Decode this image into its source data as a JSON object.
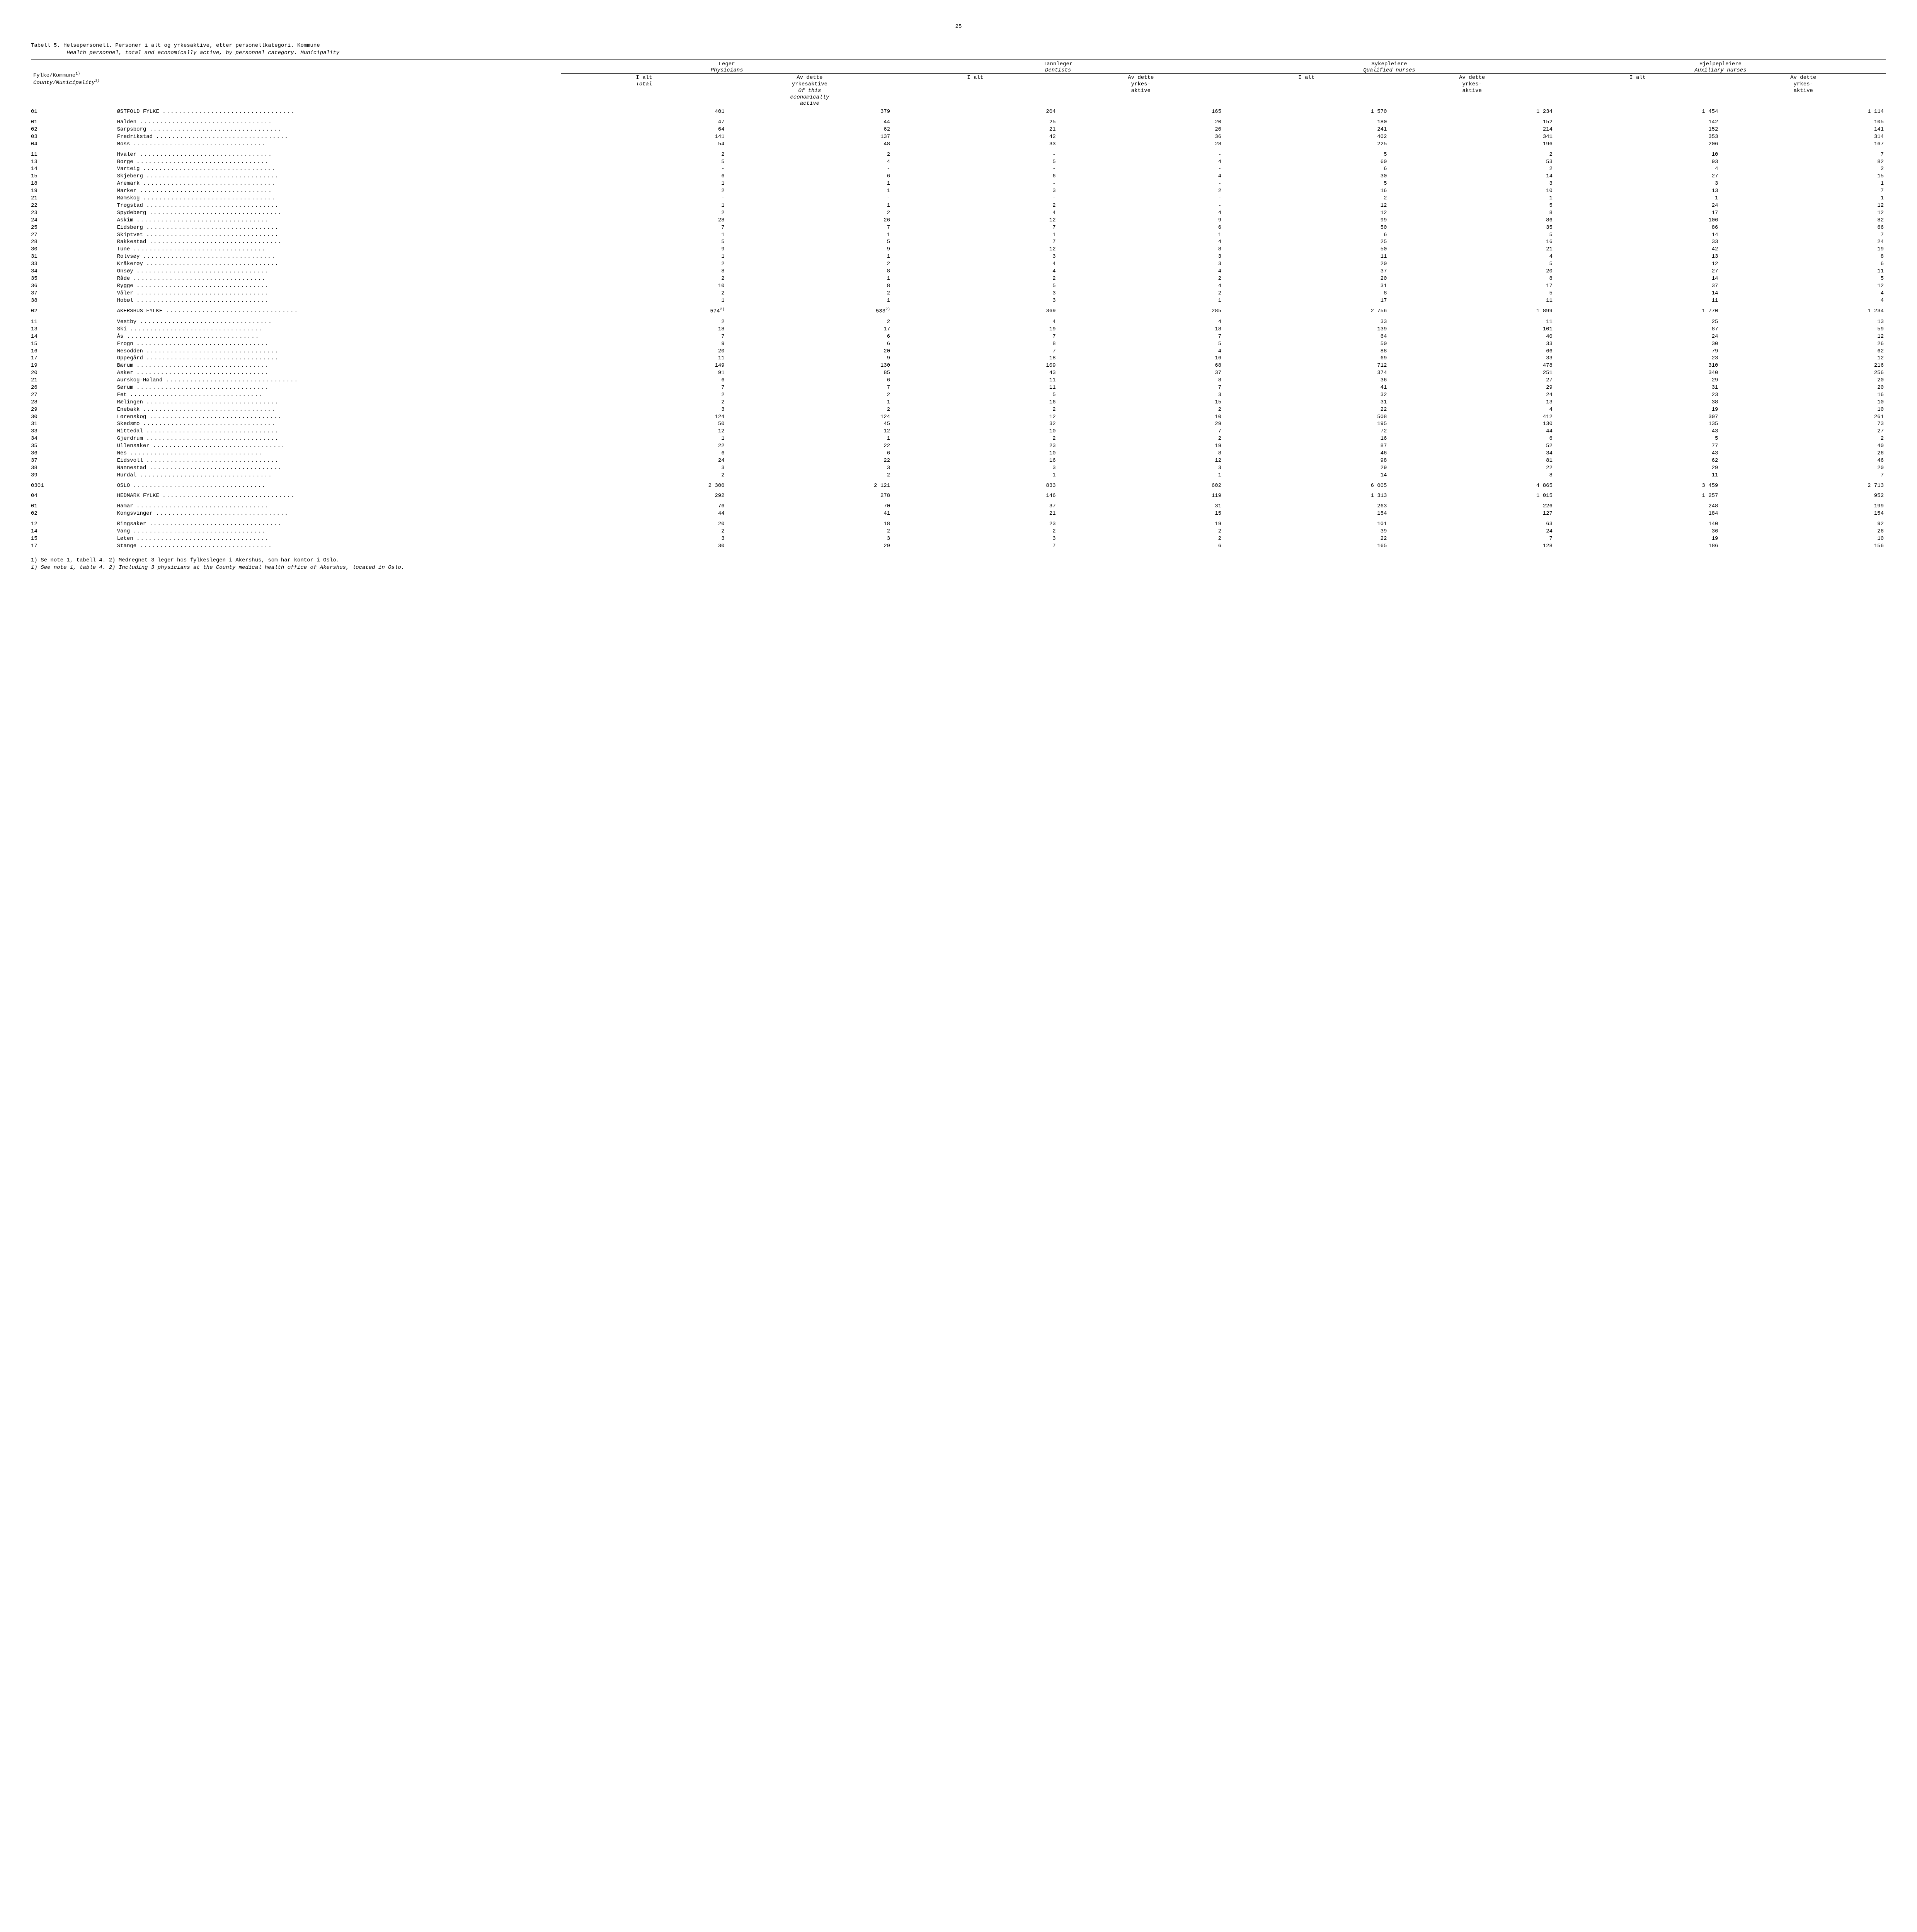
{
  "page_number": "25",
  "caption_line1_a": "Tabell 5.  Helsepersonell.  Personer i alt og yrkesaktive, etter personellkategori.  Kommune",
  "caption_line2_a": "Health personnel, total and economically active, by personnel category.   Municipality",
  "county_label_nb": "Fylke/Kommune",
  "county_label_sup": "1)",
  "county_label_en": "County/Municipality",
  "county_label_en_sup": "1)",
  "groups": [
    {
      "nb": "Leger",
      "en": "Physicians"
    },
    {
      "nb": "Tannleger",
      "en": "Dentists"
    },
    {
      "nb": "Sykepleiere",
      "en": "Qualified nurses"
    },
    {
      "nb": "Hjelpepleiere",
      "en": "Auxiliary nurses"
    }
  ],
  "sub_total_nb": "I alt",
  "sub_total_en": "Total",
  "sub_active_phys": {
    "l1": "Av dette",
    "l2": "yrkesaktive",
    "l3": "Of this",
    "l4": "economically",
    "l5": "active"
  },
  "sub_active_short": {
    "l1": "Av dette",
    "l2": "yrkes-",
    "l3": "aktive"
  },
  "fn2_sup": "2)",
  "rows": [
    {
      "type": "county",
      "code": "01",
      "name": "ØSTFOLD FYLKE",
      "v": [
        "401",
        "379",
        "204",
        "165",
        "1 570",
        "1 234",
        "1 454",
        "1 114"
      ]
    },
    {
      "type": "gap"
    },
    {
      "code": "01",
      "name": "Halden",
      "v": [
        "47",
        "44",
        "25",
        "20",
        "180",
        "152",
        "142",
        "105"
      ]
    },
    {
      "code": "02",
      "name": "Sarpsborg",
      "v": [
        "64",
        "62",
        "21",
        "20",
        "241",
        "214",
        "152",
        "141"
      ]
    },
    {
      "code": "03",
      "name": "Fredrikstad",
      "v": [
        "141",
        "137",
        "42",
        "36",
        "402",
        "341",
        "353",
        "314"
      ]
    },
    {
      "code": "04",
      "name": "Moss",
      "v": [
        "54",
        "48",
        "33",
        "28",
        "225",
        "196",
        "206",
        "167"
      ]
    },
    {
      "type": "gap"
    },
    {
      "code": "11",
      "name": "Hvaler",
      "v": [
        "2",
        "2",
        "-",
        "-",
        "5",
        "2",
        "10",
        "7"
      ]
    },
    {
      "code": "13",
      "name": "Borge",
      "v": [
        "5",
        "4",
        "5",
        "4",
        "60",
        "53",
        "93",
        "82"
      ]
    },
    {
      "code": "14",
      "name": "Varteig",
      "v": [
        "-",
        "-",
        "-",
        "-",
        "6",
        "2",
        "4",
        "2"
      ]
    },
    {
      "code": "15",
      "name": "Skjeberg",
      "v": [
        "6",
        "6",
        "6",
        "4",
        "30",
        "14",
        "27",
        "15"
      ]
    },
    {
      "code": "18",
      "name": "Aremark",
      "v": [
        "1",
        "1",
        "-",
        "-",
        "5",
        "3",
        "3",
        "1"
      ]
    },
    {
      "code": "19",
      "name": "Marker",
      "v": [
        "2",
        "1",
        "3",
        "2",
        "16",
        "10",
        "13",
        "7"
      ]
    },
    {
      "code": "21",
      "name": "Rømskog",
      "v": [
        "-",
        "-",
        "-",
        "-",
        "2",
        "1",
        "1",
        "1"
      ]
    },
    {
      "code": "22",
      "name": "Trøgstad",
      "v": [
        "1",
        "1",
        "2",
        "-",
        "12",
        "5",
        "24",
        "12"
      ]
    },
    {
      "code": "23",
      "name": "Spydeberg",
      "v": [
        "2",
        "2",
        "4",
        "4",
        "12",
        "8",
        "17",
        "12"
      ]
    },
    {
      "code": "24",
      "name": "Askim",
      "v": [
        "28",
        "26",
        "12",
        "9",
        "99",
        "86",
        "106",
        "82"
      ]
    },
    {
      "code": "25",
      "name": "Eidsberg",
      "v": [
        "7",
        "7",
        "7",
        "6",
        "50",
        "35",
        "86",
        "66"
      ]
    },
    {
      "code": "27",
      "name": "Skiptvet",
      "v": [
        "1",
        "1",
        "1",
        "1",
        "6",
        "5",
        "14",
        "7"
      ]
    },
    {
      "code": "28",
      "name": "Rakkestad",
      "v": [
        "5",
        "5",
        "7",
        "4",
        "25",
        "16",
        "33",
        "24"
      ]
    },
    {
      "code": "30",
      "name": "Tune",
      "v": [
        "9",
        "9",
        "12",
        "8",
        "50",
        "21",
        "42",
        "19"
      ]
    },
    {
      "code": "31",
      "name": "Rolvsøy",
      "v": [
        "1",
        "1",
        "3",
        "3",
        "11",
        "4",
        "13",
        "8"
      ]
    },
    {
      "code": "33",
      "name": "Kråkerøy",
      "v": [
        "2",
        "2",
        "4",
        "3",
        "20",
        "5",
        "12",
        "6"
      ]
    },
    {
      "code": "34",
      "name": "Onsøy",
      "v": [
        "8",
        "8",
        "4",
        "4",
        "37",
        "20",
        "27",
        "11"
      ]
    },
    {
      "code": "35",
      "name": "Råde",
      "v": [
        "2",
        "1",
        "2",
        "2",
        "20",
        "8",
        "14",
        "5"
      ]
    },
    {
      "code": "36",
      "name": "Rygge",
      "v": [
        "10",
        "8",
        "5",
        "4",
        "31",
        "17",
        "37",
        "12"
      ]
    },
    {
      "code": "37",
      "name": "Våler",
      "v": [
        "2",
        "2",
        "3",
        "2",
        "8",
        "5",
        "14",
        "4"
      ]
    },
    {
      "code": "38",
      "name": "Hobøl",
      "v": [
        "1",
        "1",
        "3",
        "1",
        "17",
        "11",
        "11",
        "4"
      ]
    },
    {
      "type": "gap"
    },
    {
      "type": "county",
      "code": "02",
      "name": "AKERSHUS FYLKE",
      "sup01": "2)",
      "v": [
        "574",
        "533",
        "369",
        "285",
        "2 756",
        "1 899",
        "1 770",
        "1 234"
      ]
    },
    {
      "type": "gap"
    },
    {
      "code": "11",
      "name": "Vestby",
      "v": [
        "2",
        "2",
        "4",
        "4",
        "33",
        "11",
        "25",
        "13"
      ]
    },
    {
      "code": "13",
      "name": "Ski",
      "v": [
        "18",
        "17",
        "19",
        "18",
        "139",
        "101",
        "87",
        "59"
      ]
    },
    {
      "code": "14",
      "name": "Ås",
      "v": [
        "7",
        "6",
        "7",
        "7",
        "64",
        "40",
        "24",
        "12"
      ]
    },
    {
      "code": "15",
      "name": "Frogn",
      "v": [
        "9",
        "6",
        "8",
        "5",
        "50",
        "33",
        "30",
        "26"
      ]
    },
    {
      "code": "16",
      "name": "Nesodden",
      "v": [
        "20",
        "20",
        "7",
        "4",
        "88",
        "66",
        "79",
        "62"
      ]
    },
    {
      "code": "17",
      "name": "Oppegård",
      "v": [
        "11",
        "9",
        "18",
        "16",
        "69",
        "33",
        "23",
        "12"
      ]
    },
    {
      "code": "19",
      "name": "Bærum",
      "v": [
        "149",
        "130",
        "109",
        "68",
        "712",
        "478",
        "310",
        "216"
      ]
    },
    {
      "code": "20",
      "name": "Asker",
      "v": [
        "91",
        "85",
        "43",
        "37",
        "374",
        "251",
        "340",
        "256"
      ]
    },
    {
      "code": "21",
      "name": "Aurskog-Høland",
      "v": [
        "6",
        "6",
        "11",
        "8",
        "36",
        "27",
        "29",
        "20"
      ]
    },
    {
      "code": "26",
      "name": "Sørum",
      "v": [
        "7",
        "7",
        "11",
        "7",
        "41",
        "29",
        "31",
        "20"
      ]
    },
    {
      "code": "27",
      "name": "Fet",
      "v": [
        "2",
        "2",
        "5",
        "3",
        "32",
        "24",
        "23",
        "16"
      ]
    },
    {
      "code": "28",
      "name": "Rælingen",
      "v": [
        "2",
        "1",
        "16",
        "15",
        "31",
        "13",
        "38",
        "10"
      ]
    },
    {
      "code": "29",
      "name": "Enebakk",
      "v": [
        "3",
        "2",
        "2",
        "2",
        "22",
        "4",
        "19",
        "10"
      ]
    },
    {
      "code": "30",
      "name": "Lørenskog",
      "v": [
        "124",
        "124",
        "12",
        "10",
        "508",
        "412",
        "307",
        "261"
      ]
    },
    {
      "code": "31",
      "name": "Skedsmo",
      "v": [
        "50",
        "45",
        "32",
        "29",
        "195",
        "130",
        "135",
        "73"
      ]
    },
    {
      "code": "33",
      "name": "Nittedal",
      "v": [
        "12",
        "12",
        "10",
        "7",
        "72",
        "44",
        "43",
        "27"
      ]
    },
    {
      "code": "34",
      "name": "Gjerdrum",
      "v": [
        "1",
        "1",
        "2",
        "2",
        "16",
        "6",
        "5",
        "2"
      ]
    },
    {
      "code": "35",
      "name": "Ullensaker",
      "v": [
        "22",
        "22",
        "23",
        "19",
        "87",
        "52",
        "77",
        "40"
      ]
    },
    {
      "code": "36",
      "name": "Nes",
      "v": [
        "6",
        "6",
        "10",
        "8",
        "46",
        "34",
        "43",
        "26"
      ]
    },
    {
      "code": "37",
      "name": "Eidsvoll",
      "v": [
        "24",
        "22",
        "16",
        "12",
        "98",
        "81",
        "62",
        "46"
      ]
    },
    {
      "code": "38",
      "name": "Nannestad",
      "v": [
        "3",
        "3",
        "3",
        "3",
        "29",
        "22",
        "29",
        "20"
      ]
    },
    {
      "code": "39",
      "name": "Hurdal",
      "v": [
        "2",
        "2",
        "1",
        "1",
        "14",
        "8",
        "11",
        "7"
      ]
    },
    {
      "type": "gap"
    },
    {
      "type": "county",
      "code": "0301",
      "name": "OSLO",
      "v": [
        "2 300",
        "2 121",
        "833",
        "602",
        "6 005",
        "4 865",
        "3 459",
        "2 713"
      ]
    },
    {
      "type": "gap"
    },
    {
      "type": "county",
      "code": "04",
      "name": "HEDMARK FYLKE",
      "v": [
        "292",
        "278",
        "146",
        "119",
        "1 313",
        "1 015",
        "1 257",
        "952"
      ]
    },
    {
      "type": "gap"
    },
    {
      "code": "01",
      "name": "Hamar",
      "v": [
        "76",
        "70",
        "37",
        "31",
        "263",
        "226",
        "248",
        "199"
      ]
    },
    {
      "code": "02",
      "name": "Kongsvinger",
      "v": [
        "44",
        "41",
        "21",
        "15",
        "154",
        "127",
        "184",
        "154"
      ]
    },
    {
      "type": "gap"
    },
    {
      "code": "12",
      "name": "Ringsaker",
      "v": [
        "20",
        "18",
        "23",
        "19",
        "101",
        "63",
        "140",
        "92"
      ]
    },
    {
      "code": "14",
      "name": "Vang",
      "v": [
        "2",
        "2",
        "2",
        "2",
        "39",
        "24",
        "36",
        "26"
      ]
    },
    {
      "code": "15",
      "name": "Løten",
      "v": [
        "3",
        "3",
        "3",
        "2",
        "22",
        "7",
        "19",
        "10"
      ]
    },
    {
      "code": "17",
      "name": "Stange",
      "v": [
        "30",
        "29",
        "7",
        "6",
        "165",
        "128",
        "186",
        "156"
      ]
    }
  ],
  "footnotes": {
    "line1": "1)  Se note 1, tabell 4.  2)  Medregnet 3 leger hos fylkeslegen i Akershus, som har kontor i Oslo.",
    "line2": "1)  See note 1, table 4.  2)  Including 3 physicians at the County medical health office of Akershus, located in Oslo."
  }
}
